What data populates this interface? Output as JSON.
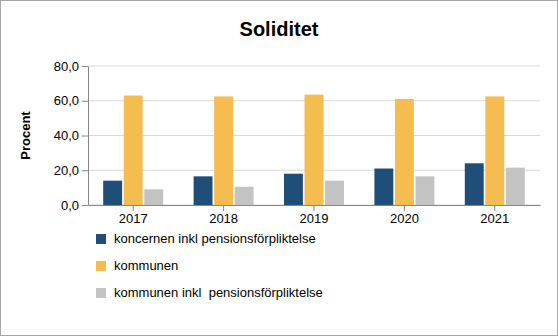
{
  "chart_data": {
    "type": "bar",
    "title": "Soliditet",
    "y_label": "Procent",
    "categories": [
      "2017",
      "2018",
      "2019",
      "2020",
      "2021"
    ],
    "series": [
      {
        "name": "koncernen inkl pensionsförpliktelse",
        "color": "#1f4e79",
        "values": [
          14,
          16.5,
          18,
          21,
          24
        ]
      },
      {
        "name": "kommunen",
        "color": "#f5bd4f",
        "values": [
          63,
          62.5,
          63.5,
          61,
          62.5
        ]
      },
      {
        "name": "kommunen inkl  pensionsförpliktelse",
        "color": "#c3c3c3",
        "values": [
          9,
          10.5,
          14,
          16.5,
          21.5
        ]
      }
    ],
    "ylim": [
      0,
      80
    ],
    "yticks": [
      {
        "value": 0,
        "label": "0,0"
      },
      {
        "value": 20,
        "label": "20,0"
      },
      {
        "value": 40,
        "label": "40,0"
      },
      {
        "value": 60,
        "label": "60,0"
      },
      {
        "value": 80,
        "label": "80,0"
      }
    ],
    "grid": true,
    "legend": "bottom"
  }
}
